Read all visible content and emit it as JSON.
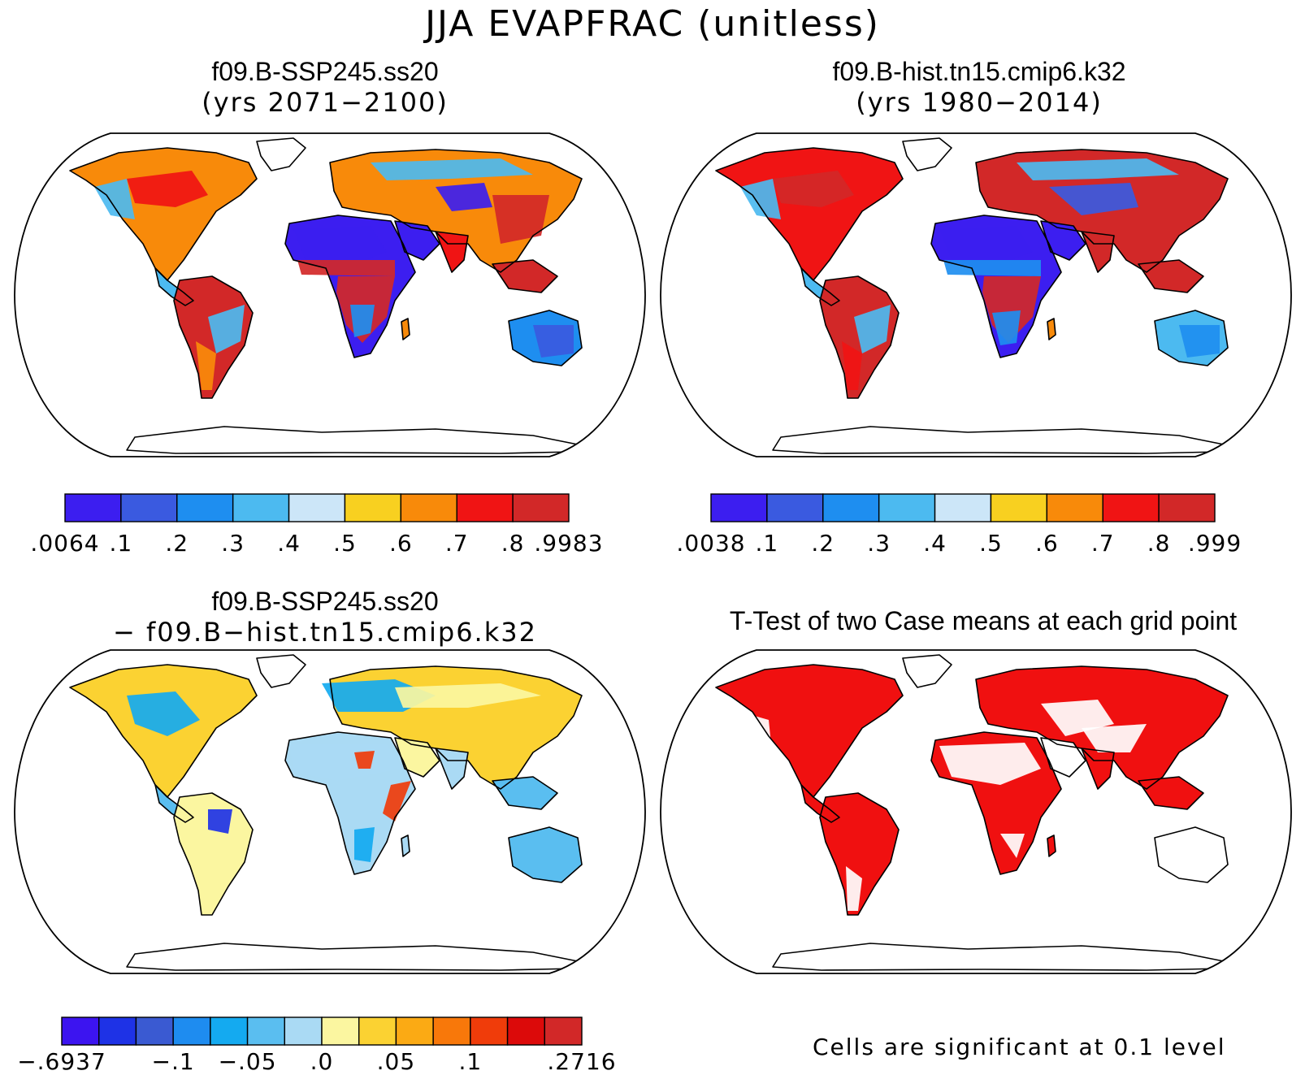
{
  "main_title": "JJA EVAPFRAC (unitless)",
  "panels": [
    {
      "id": "future",
      "title": "f09.B-SSP245.ss20",
      "subtitle": "(yrs 2071−2100)"
    },
    {
      "id": "historical",
      "title": "f09.B-hist.tn15.cmip6.k32",
      "subtitle": "(yrs 1980−2014)"
    },
    {
      "id": "difference",
      "title": "f09.B-SSP245.ss20",
      "subtitle": "− f09.B−hist.tn15.cmip6.k32"
    },
    {
      "id": "ttest",
      "title": "T-Test of two Case means at each grid point"
    }
  ],
  "colorbars": {
    "future": {
      "labels": [
        ".0064",
        ".1",
        ".2",
        ".3",
        ".4",
        ".5",
        ".6",
        ".7",
        ".8",
        ".9983"
      ],
      "colors": [
        "#3c1ef0",
        "#3a5ae0",
        "#1e8ef0",
        "#4cbaf0",
        "#cce6f8",
        "#f8d020",
        "#f88a0a",
        "#f01414",
        "#d22828"
      ]
    },
    "historical": {
      "labels": [
        ".0038",
        ".1",
        ".2",
        ".3",
        ".4",
        ".5",
        ".6",
        ".7",
        ".8",
        ".999"
      ],
      "colors": [
        "#3c1ef0",
        "#3a5ae0",
        "#1e8ef0",
        "#4cbaf0",
        "#cce6f8",
        "#f8d020",
        "#f88a0a",
        "#f01414",
        "#d22828"
      ]
    },
    "difference": {
      "labels": [
        "−.6937",
        "−.1",
        "−.05",
        ".0",
        ".05",
        ".1",
        ".2716"
      ],
      "colors": [
        "#3c14f0",
        "#1e32e6",
        "#3a5ad2",
        "#1e8cf0",
        "#14aaf0",
        "#5abef0",
        "#aadaf4",
        "#fbf6a0",
        "#fbd232",
        "#fbaa14",
        "#f8780a",
        "#f03c0a",
        "#dc0a0a",
        "#d22828"
      ]
    }
  },
  "significance_color": "#f01010",
  "note": "Cells are significant at 0.1 level"
}
